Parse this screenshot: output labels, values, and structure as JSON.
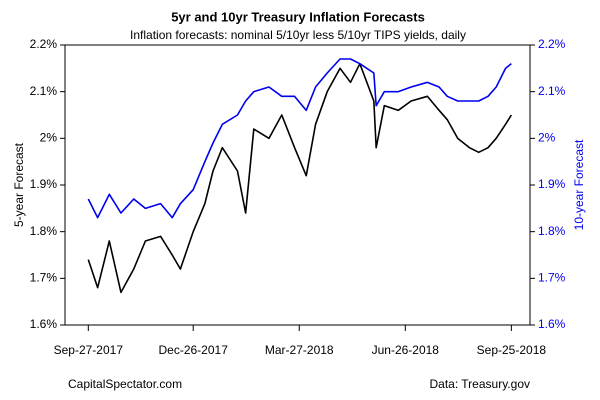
{
  "chart_data": {
    "type": "line",
    "title": "5yr and 10yr Treasury Inflation Forecasts",
    "subtitle": "Inflation forecasts: nominal 5/10yr less 5/10yr TIPS yields, daily",
    "y_label": "5-year Forecast",
    "y2_label": "10-year Forecast",
    "source_left": "CapitalSpectator.com",
    "source_right": "Data: Treasury.gov",
    "x": [
      "2017-09-27",
      "2017-10-05",
      "2017-10-15",
      "2017-10-25",
      "2017-11-05",
      "2017-11-15",
      "2017-11-28",
      "2017-12-08",
      "2017-12-15",
      "2017-12-26",
      "2018-01-05",
      "2018-01-12",
      "2018-01-20",
      "2018-02-02",
      "2018-02-09",
      "2018-02-16",
      "2018-03-01",
      "2018-03-12",
      "2018-03-23",
      "2018-04-02",
      "2018-04-10",
      "2018-04-20",
      "2018-05-01",
      "2018-05-10",
      "2018-05-18",
      "2018-05-30",
      "2018-06-01",
      "2018-06-08",
      "2018-06-20",
      "2018-07-01",
      "2018-07-15",
      "2018-07-25",
      "2018-08-01",
      "2018-08-10",
      "2018-08-20",
      "2018-08-28",
      "2018-09-05",
      "2018-09-12",
      "2018-09-20",
      "2018-09-25"
    ],
    "series": [
      {
        "name": "5-year Forecast",
        "color": "#000000",
        "axis": "y",
        "values": [
          1.74,
          1.68,
          1.78,
          1.67,
          1.72,
          1.78,
          1.79,
          1.75,
          1.72,
          1.8,
          1.86,
          1.93,
          1.98,
          1.93,
          1.84,
          2.02,
          2.0,
          2.05,
          1.98,
          1.92,
          2.03,
          2.1,
          2.15,
          2.12,
          2.16,
          2.08,
          1.98,
          2.07,
          2.06,
          2.08,
          2.09,
          2.06,
          2.04,
          2.0,
          1.98,
          1.97,
          1.98,
          2.0,
          2.03,
          2.05
        ]
      },
      {
        "name": "10-year Forecast",
        "color": "#0000ee",
        "axis": "y2",
        "values": [
          1.87,
          1.83,
          1.88,
          1.84,
          1.87,
          1.85,
          1.86,
          1.83,
          1.86,
          1.89,
          1.95,
          1.99,
          2.03,
          2.05,
          2.08,
          2.1,
          2.11,
          2.09,
          2.09,
          2.06,
          2.11,
          2.14,
          2.17,
          2.17,
          2.16,
          2.14,
          2.07,
          2.1,
          2.1,
          2.11,
          2.12,
          2.11,
          2.09,
          2.08,
          2.08,
          2.08,
          2.09,
          2.11,
          2.15,
          2.16
        ]
      }
    ],
    "xlim": [
      "2017-09-07",
      "2018-10-11"
    ],
    "xticks": [
      {
        "value": "2017-09-27",
        "label": "Sep-27-2017"
      },
      {
        "value": "2017-12-26",
        "label": "Dec-26-2017"
      },
      {
        "value": "2018-03-27",
        "label": "Mar-27-2018"
      },
      {
        "value": "2018-06-26",
        "label": "Jun-26-2018"
      },
      {
        "value": "2018-09-25",
        "label": "Sep-25-2018"
      }
    ],
    "ylim": [
      1.6,
      2.2
    ],
    "yticks": [
      {
        "value": 1.6,
        "label": "1.6%"
      },
      {
        "value": 1.7,
        "label": "1.7%"
      },
      {
        "value": 1.8,
        "label": "1.8%"
      },
      {
        "value": 1.9,
        "label": "1.9%"
      },
      {
        "value": 2,
        "label": "2%"
      },
      {
        "value": 2.1,
        "label": "2.1%"
      },
      {
        "value": 2.2,
        "label": "2.2%"
      }
    ],
    "y2lim": [
      1.6,
      2.2
    ],
    "y2ticks": [
      {
        "value": 1.6,
        "label": "1.6%"
      },
      {
        "value": 1.7,
        "label": "1.7%"
      },
      {
        "value": 1.8,
        "label": "1.8%"
      },
      {
        "value": 1.9,
        "label": "1.9%"
      },
      {
        "value": 2,
        "label": "2%"
      },
      {
        "value": 2.1,
        "label": "2.1%"
      },
      {
        "value": 2.2,
        "label": "2.2%"
      }
    ],
    "y2_color": "#0000ee"
  }
}
